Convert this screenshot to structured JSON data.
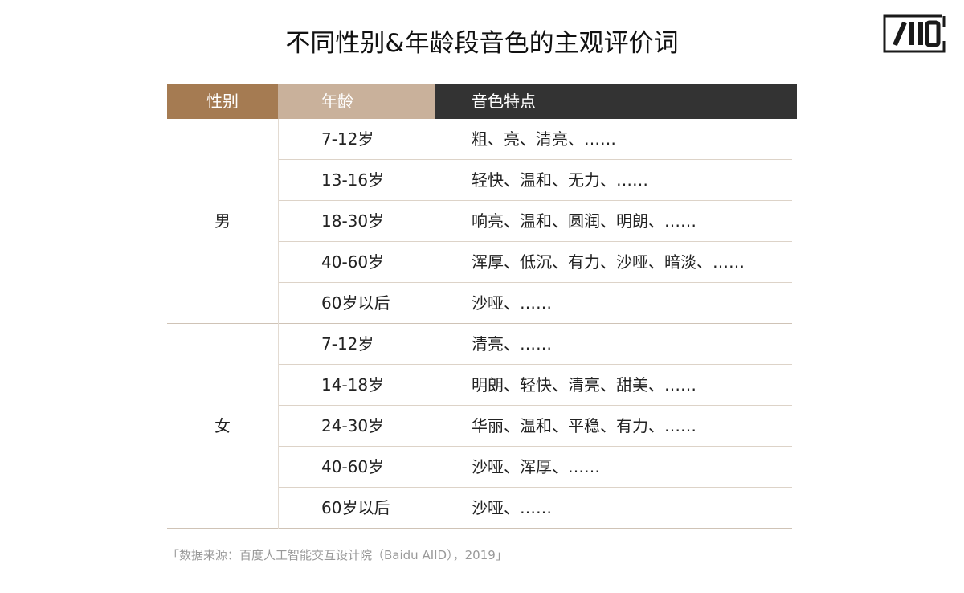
{
  "title": "不同性别&年龄段音色的主观评价词",
  "logo": {
    "text": "AIID",
    "icon": "aiid-logo"
  },
  "header": {
    "gender": "性别",
    "age": "年龄",
    "features": "音色特点"
  },
  "colors": {
    "gender_header": "#a57b52",
    "age_header": "#c9b19b",
    "features_header": "#333333"
  },
  "groups": [
    {
      "gender": "男",
      "rows": [
        {
          "age": "7-12岁",
          "features": "粗、亮、清亮、……"
        },
        {
          "age": "13-16岁",
          "features": "轻快、温和、无力、……"
        },
        {
          "age": "18-30岁",
          "features": "响亮、温和、圆润、明朗、……"
        },
        {
          "age": "40-60岁",
          "features": "浑厚、低沉、有力、沙哑、暗淡、……"
        },
        {
          "age": "60岁以后",
          "features": "沙哑、……"
        }
      ]
    },
    {
      "gender": "女",
      "rows": [
        {
          "age": "7-12岁",
          "features": "清亮、……"
        },
        {
          "age": "14-18岁",
          "features": "明朗、轻快、清亮、甜美、……"
        },
        {
          "age": "24-30岁",
          "features": "华丽、温和、平稳、有力、……"
        },
        {
          "age": "40-60岁",
          "features": "沙哑、浑厚、……"
        },
        {
          "age": "60岁以后",
          "features": "沙哑、……"
        }
      ]
    }
  ],
  "source": "「数据来源：百度人工智能交互设计院（Baidu AIID），2019」"
}
